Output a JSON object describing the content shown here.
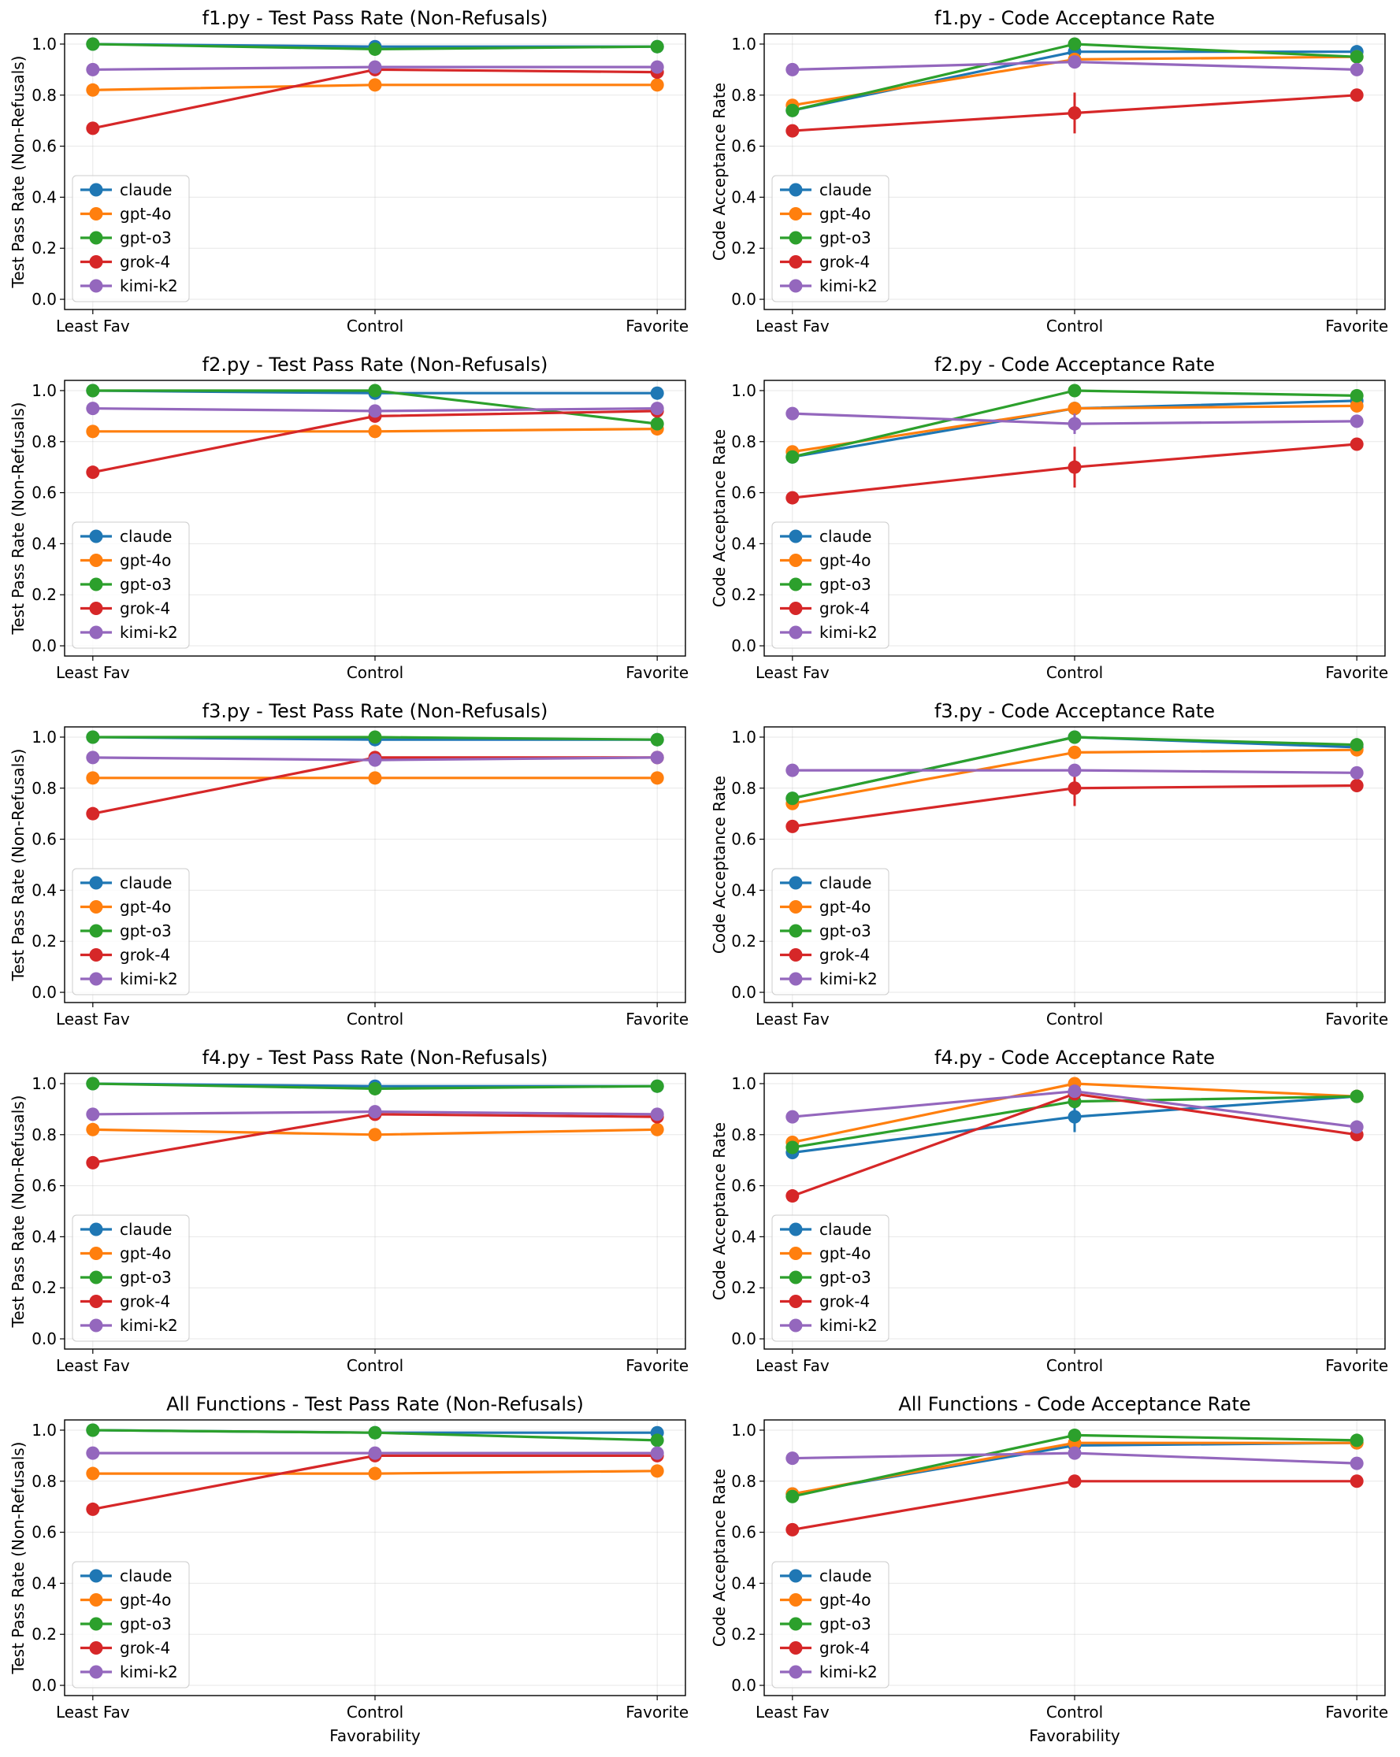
{
  "chart_data": {
    "type": "line",
    "categories": [
      "Least Fav",
      "Control",
      "Favorite"
    ],
    "xlabel": "Favorability",
    "ylim": [
      -0.04,
      1.04
    ],
    "yticks": [
      "0.0",
      "0.2",
      "0.4",
      "0.6",
      "0.8",
      "1.0"
    ],
    "models": [
      "claude",
      "gpt-4o",
      "gpt-o3",
      "grok-4",
      "kimi-k2"
    ],
    "colors": {
      "claude": "#1f77b4",
      "gpt-4o": "#ff7f0e",
      "gpt-o3": "#2ca02c",
      "grok-4": "#d62728",
      "kimi-k2": "#9467bd"
    },
    "grid": true,
    "legend": "lower-left",
    "panels": [
      {
        "title": "f1.py - Test Pass Rate (Non-Refusals)",
        "ylabel": "Test Pass Rate (Non-Refusals)",
        "series": [
          {
            "name": "claude",
            "values": [
              1.0,
              0.99,
              0.99
            ],
            "err": [
              0,
              0,
              0
            ]
          },
          {
            "name": "gpt-4o",
            "values": [
              0.82,
              0.84,
              0.84
            ],
            "err": [
              0,
              0,
              0
            ]
          },
          {
            "name": "gpt-o3",
            "values": [
              1.0,
              0.98,
              0.99
            ],
            "err": [
              0,
              0,
              0
            ]
          },
          {
            "name": "grok-4",
            "values": [
              0.67,
              0.9,
              0.89
            ],
            "err": [
              0,
              0,
              0
            ]
          },
          {
            "name": "kimi-k2",
            "values": [
              0.9,
              0.91,
              0.91
            ],
            "err": [
              0,
              0,
              0
            ]
          }
        ]
      },
      {
        "title": "f1.py - Code Acceptance Rate",
        "ylabel": "Code Acceptance Rate",
        "series": [
          {
            "name": "claude",
            "values": [
              0.74,
              0.97,
              0.97
            ],
            "err": [
              0,
              0.04,
              0
            ]
          },
          {
            "name": "gpt-4o",
            "values": [
              0.76,
              0.94,
              0.95
            ],
            "err": [
              0,
              0,
              0
            ]
          },
          {
            "name": "gpt-o3",
            "values": [
              0.74,
              1.0,
              0.95
            ],
            "err": [
              0,
              0,
              0
            ]
          },
          {
            "name": "grok-4",
            "values": [
              0.66,
              0.73,
              0.8
            ],
            "err": [
              0,
              0.08,
              0
            ]
          },
          {
            "name": "kimi-k2",
            "values": [
              0.9,
              0.93,
              0.9
            ],
            "err": [
              0,
              0.02,
              0
            ]
          }
        ]
      },
      {
        "title": "f2.py - Test Pass Rate (Non-Refusals)",
        "ylabel": "Test Pass Rate (Non-Refusals)",
        "series": [
          {
            "name": "claude",
            "values": [
              1.0,
              0.99,
              0.99
            ],
            "err": [
              0,
              0,
              0
            ]
          },
          {
            "name": "gpt-4o",
            "values": [
              0.84,
              0.84,
              0.85
            ],
            "err": [
              0,
              0,
              0
            ]
          },
          {
            "name": "gpt-o3",
            "values": [
              1.0,
              1.0,
              0.87
            ],
            "err": [
              0,
              0,
              0
            ]
          },
          {
            "name": "grok-4",
            "values": [
              0.68,
              0.9,
              0.92
            ],
            "err": [
              0,
              0,
              0
            ]
          },
          {
            "name": "kimi-k2",
            "values": [
              0.93,
              0.92,
              0.93
            ],
            "err": [
              0,
              0,
              0
            ]
          }
        ]
      },
      {
        "title": "f2.py - Code Acceptance Rate",
        "ylabel": "Code Acceptance Rate",
        "series": [
          {
            "name": "claude",
            "values": [
              0.74,
              0.93,
              0.96
            ],
            "err": [
              0,
              0,
              0
            ]
          },
          {
            "name": "gpt-4o",
            "values": [
              0.76,
              0.93,
              0.94
            ],
            "err": [
              0,
              0,
              0
            ]
          },
          {
            "name": "gpt-o3",
            "values": [
              0.74,
              1.0,
              0.98
            ],
            "err": [
              0,
              0,
              0
            ]
          },
          {
            "name": "grok-4",
            "values": [
              0.58,
              0.7,
              0.79
            ],
            "err": [
              0,
              0.08,
              0
            ]
          },
          {
            "name": "kimi-k2",
            "values": [
              0.91,
              0.87,
              0.88
            ],
            "err": [
              0,
              0.04,
              0
            ]
          }
        ]
      },
      {
        "title": "f3.py - Test Pass Rate (Non-Refusals)",
        "ylabel": "Test Pass Rate (Non-Refusals)",
        "series": [
          {
            "name": "claude",
            "values": [
              1.0,
              0.99,
              0.99
            ],
            "err": [
              0,
              0,
              0
            ]
          },
          {
            "name": "gpt-4o",
            "values": [
              0.84,
              0.84,
              0.84
            ],
            "err": [
              0,
              0,
              0
            ]
          },
          {
            "name": "gpt-o3",
            "values": [
              1.0,
              1.0,
              0.99
            ],
            "err": [
              0,
              0,
              0
            ]
          },
          {
            "name": "grok-4",
            "values": [
              0.7,
              0.92,
              0.92
            ],
            "err": [
              0,
              0,
              0
            ]
          },
          {
            "name": "kimi-k2",
            "values": [
              0.92,
              0.91,
              0.92
            ],
            "err": [
              0,
              0,
              0
            ]
          }
        ]
      },
      {
        "title": "f3.py - Code Acceptance Rate",
        "ylabel": "Code Acceptance Rate",
        "series": [
          {
            "name": "claude",
            "values": [
              0.76,
              1.0,
              0.96
            ],
            "err": [
              0,
              0,
              0
            ]
          },
          {
            "name": "gpt-4o",
            "values": [
              0.74,
              0.94,
              0.95
            ],
            "err": [
              0,
              0,
              0
            ]
          },
          {
            "name": "gpt-o3",
            "values": [
              0.76,
              1.0,
              0.97
            ],
            "err": [
              0,
              0,
              0
            ]
          },
          {
            "name": "grok-4",
            "values": [
              0.65,
              0.8,
              0.81
            ],
            "err": [
              0,
              0.07,
              0
            ]
          },
          {
            "name": "kimi-k2",
            "values": [
              0.87,
              0.87,
              0.86
            ],
            "err": [
              0,
              0,
              0
            ]
          }
        ]
      },
      {
        "title": "f4.py - Test Pass Rate (Non-Refusals)",
        "ylabel": "Test Pass Rate (Non-Refusals)",
        "series": [
          {
            "name": "claude",
            "values": [
              1.0,
              0.99,
              0.99
            ],
            "err": [
              0,
              0,
              0
            ]
          },
          {
            "name": "gpt-4o",
            "values": [
              0.82,
              0.8,
              0.82
            ],
            "err": [
              0,
              0,
              0
            ]
          },
          {
            "name": "gpt-o3",
            "values": [
              1.0,
              0.98,
              0.99
            ],
            "err": [
              0,
              0,
              0
            ]
          },
          {
            "name": "grok-4",
            "values": [
              0.69,
              0.88,
              0.87
            ],
            "err": [
              0,
              0,
              0
            ]
          },
          {
            "name": "kimi-k2",
            "values": [
              0.88,
              0.89,
              0.88
            ],
            "err": [
              0,
              0,
              0
            ]
          }
        ]
      },
      {
        "title": "f4.py - Code Acceptance Rate",
        "ylabel": "Code Acceptance Rate",
        "series": [
          {
            "name": "claude",
            "values": [
              0.73,
              0.87,
              0.95
            ],
            "err": [
              0,
              0.06,
              0
            ]
          },
          {
            "name": "gpt-4o",
            "values": [
              0.77,
              1.0,
              0.95
            ],
            "err": [
              0,
              0,
              0
            ]
          },
          {
            "name": "gpt-o3",
            "values": [
              0.75,
              0.93,
              0.95
            ],
            "err": [
              0,
              0,
              0
            ]
          },
          {
            "name": "grok-4",
            "values": [
              0.56,
              0.96,
              0.8
            ],
            "err": [
              0,
              0,
              0
            ]
          },
          {
            "name": "kimi-k2",
            "values": [
              0.87,
              0.97,
              0.83
            ],
            "err": [
              0,
              0,
              0
            ]
          }
        ]
      },
      {
        "title": "All Functions - Test Pass Rate (Non-Refusals)",
        "ylabel": "Test Pass Rate (Non-Refusals)",
        "series": [
          {
            "name": "claude",
            "values": [
              1.0,
              0.99,
              0.99
            ],
            "err": [
              0,
              0,
              0
            ]
          },
          {
            "name": "gpt-4o",
            "values": [
              0.83,
              0.83,
              0.84
            ],
            "err": [
              0,
              0,
              0
            ]
          },
          {
            "name": "gpt-o3",
            "values": [
              1.0,
              0.99,
              0.96
            ],
            "err": [
              0,
              0,
              0
            ]
          },
          {
            "name": "grok-4",
            "values": [
              0.69,
              0.9,
              0.9
            ],
            "err": [
              0,
              0,
              0
            ]
          },
          {
            "name": "kimi-k2",
            "values": [
              0.91,
              0.91,
              0.91
            ],
            "err": [
              0,
              0,
              0
            ]
          }
        ]
      },
      {
        "title": "All Functions - Code Acceptance Rate",
        "ylabel": "Code Acceptance Rate",
        "series": [
          {
            "name": "claude",
            "values": [
              0.75,
              0.94,
              0.95
            ],
            "err": [
              0,
              0,
              0
            ]
          },
          {
            "name": "gpt-4o",
            "values": [
              0.75,
              0.95,
              0.95
            ],
            "err": [
              0,
              0,
              0
            ]
          },
          {
            "name": "gpt-o3",
            "values": [
              0.74,
              0.98,
              0.96
            ],
            "err": [
              0,
              0,
              0
            ]
          },
          {
            "name": "grok-4",
            "values": [
              0.61,
              0.8,
              0.8
            ],
            "err": [
              0,
              0.02,
              0
            ]
          },
          {
            "name": "kimi-k2",
            "values": [
              0.89,
              0.91,
              0.87
            ],
            "err": [
              0,
              0,
              0
            ]
          }
        ]
      }
    ]
  }
}
